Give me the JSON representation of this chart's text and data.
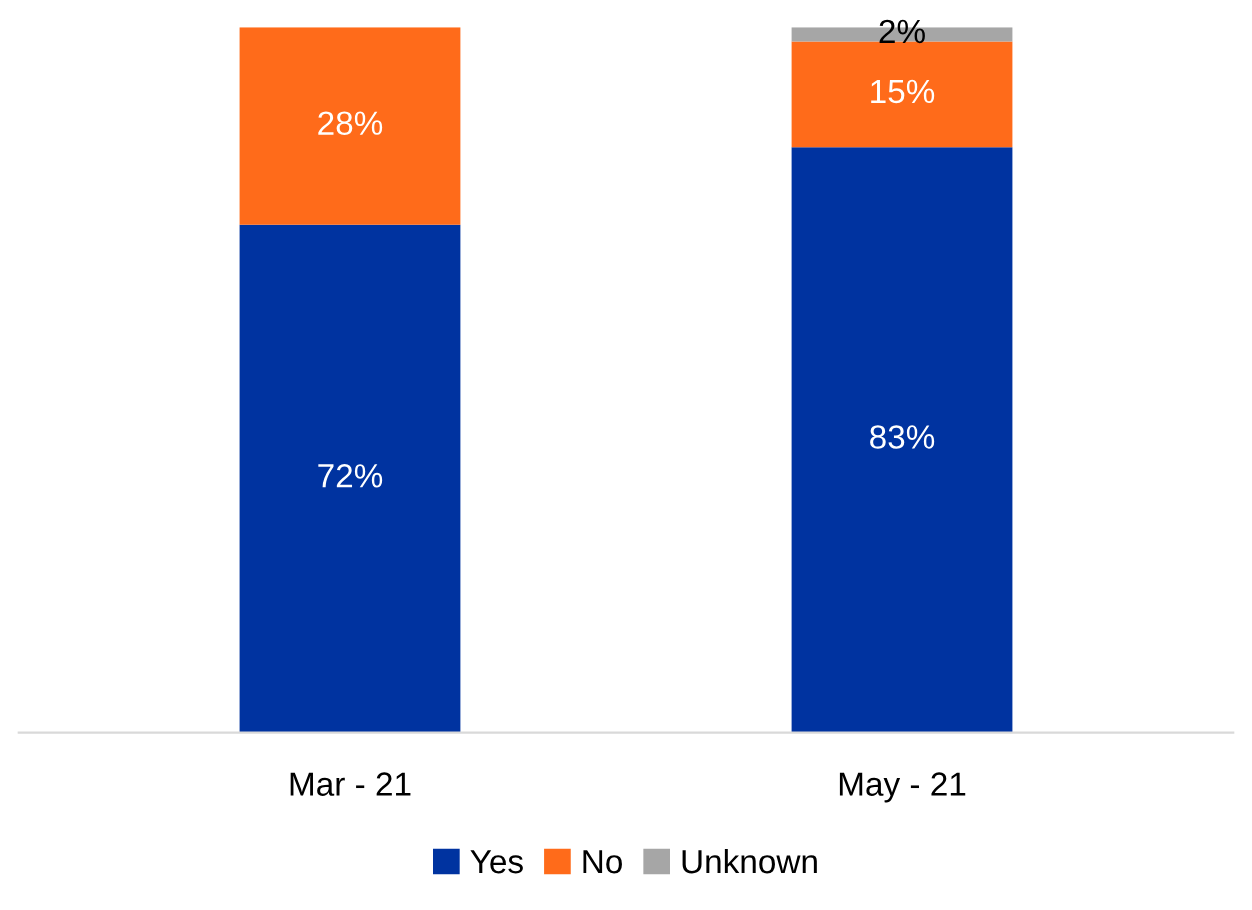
{
  "chart_data": {
    "type": "bar",
    "stacked": true,
    "legend": "bottom",
    "grid": false,
    "categories": [
      "Mar - 21",
      "May - 21"
    ],
    "series": [
      {
        "name": "Yes",
        "color": "#0033a0",
        "values": [
          72,
          83
        ],
        "value_labels": [
          "72%",
          "83%"
        ]
      },
      {
        "name": "No",
        "color": "#ff6b1a",
        "values": [
          28,
          15
        ],
        "value_labels": [
          "28%",
          "15%"
        ]
      },
      {
        "name": "Unknown",
        "color": "#a6a6a6",
        "values": [
          null,
          2
        ],
        "value_labels": [
          null,
          "2%"
        ]
      }
    ]
  }
}
